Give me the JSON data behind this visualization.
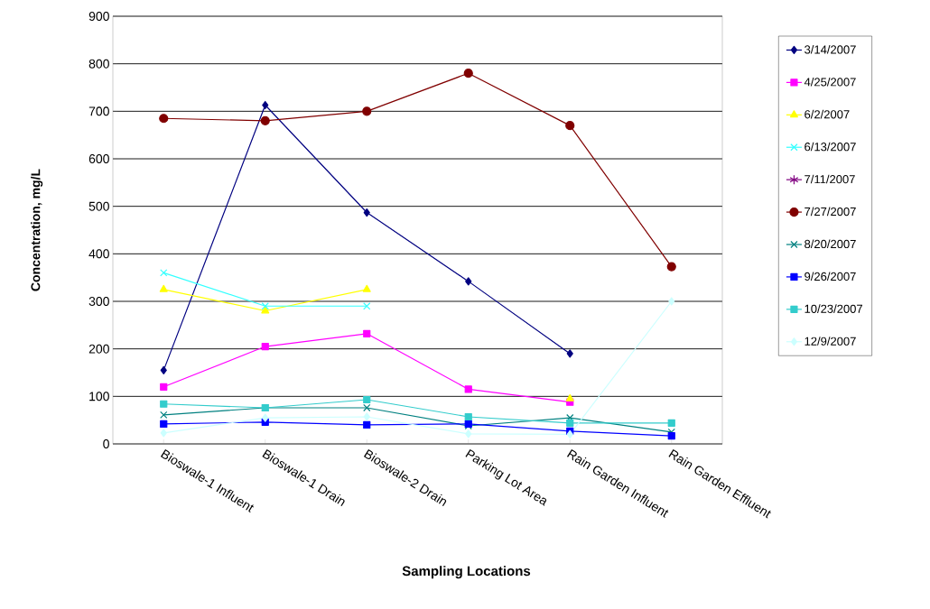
{
  "chart_data": {
    "type": "line",
    "xlabel": "Sampling Locations",
    "ylabel": "Concentration, mg/L",
    "categories": [
      "Bioswale-1 Influent",
      "Bioswale-1 Drain",
      "Bioswale-2 Drain",
      "Parking Lot Area",
      "Rain Garden Influent",
      "Rain Garden Effluent"
    ],
    "ylim": [
      0,
      900
    ],
    "yticks": [
      0,
      100,
      200,
      300,
      400,
      500,
      600,
      700,
      800,
      900
    ],
    "grid": "y",
    "legend": "right",
    "series": [
      {
        "name": "3/14/2007",
        "color": "#000080",
        "marker": "diamond",
        "values": [
          155,
          713,
          487,
          342,
          190,
          null
        ]
      },
      {
        "name": "4/25/2007",
        "color": "#ff00ff",
        "marker": "square",
        "values": [
          120,
          205,
          232,
          115,
          88,
          null
        ]
      },
      {
        "name": "6/2/2007",
        "color": "#ffff00",
        "marker": "triangle",
        "values": [
          325,
          280,
          325,
          null,
          95,
          null
        ]
      },
      {
        "name": "6/13/2007",
        "color": "#33ffff",
        "marker": "cross",
        "values": [
          360,
          290,
          290,
          null,
          null,
          null
        ]
      },
      {
        "name": "7/11/2007",
        "color": "#800080",
        "marker": "star",
        "values": [
          null,
          null,
          null,
          null,
          null,
          null
        ]
      },
      {
        "name": "7/27/2007",
        "color": "#800000",
        "marker": "circle",
        "values": [
          685,
          680,
          700,
          780,
          670,
          373
        ]
      },
      {
        "name": "8/20/2007",
        "color": "#008080",
        "marker": "cross",
        "values": [
          61,
          76,
          76,
          38,
          55,
          25
        ]
      },
      {
        "name": "9/26/2007",
        "color": "#0000ff",
        "marker": "square",
        "values": [
          42,
          46,
          40,
          42,
          27,
          17
        ]
      },
      {
        "name": "10/23/2007",
        "color": "#33cccc",
        "marker": "square",
        "values": [
          84,
          76,
          93,
          57,
          44,
          44
        ]
      },
      {
        "name": "12/9/2007",
        "color": "#ccffff",
        "marker": "diamond",
        "values": [
          23,
          55,
          57,
          21,
          20,
          300
        ]
      }
    ]
  }
}
